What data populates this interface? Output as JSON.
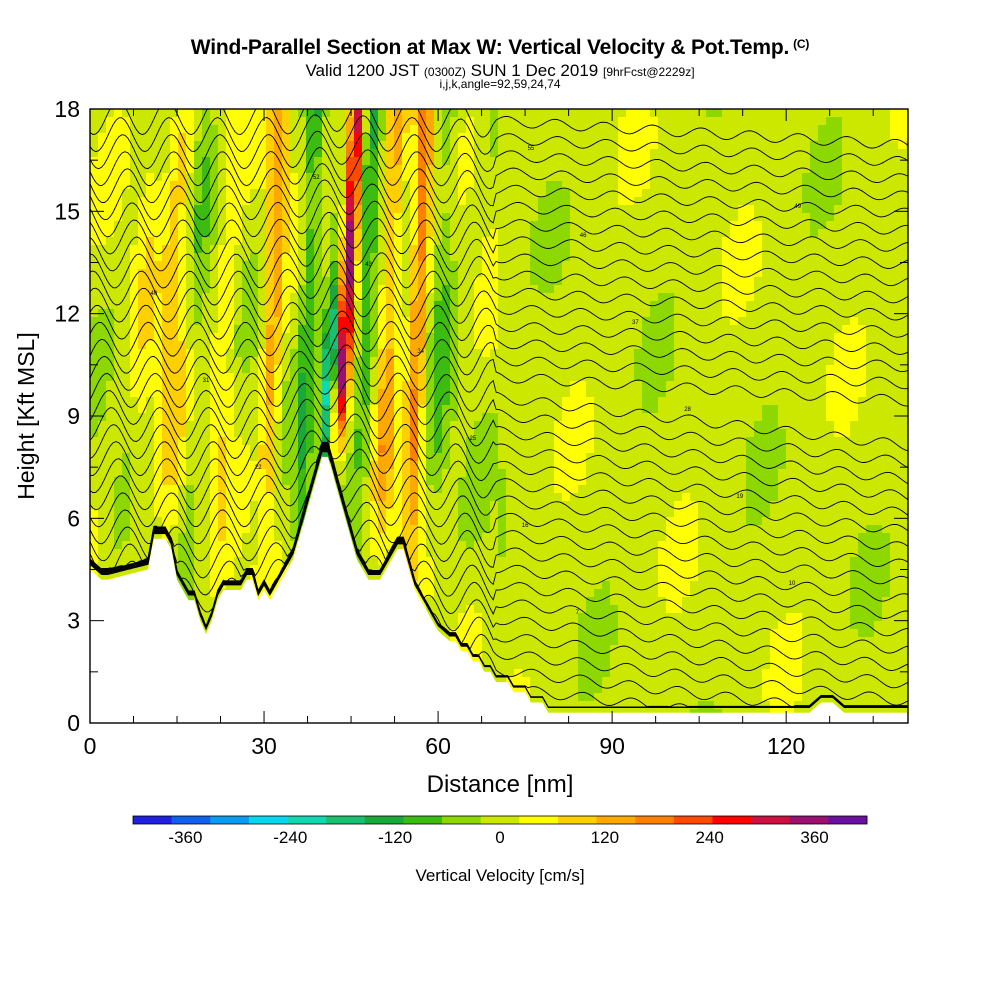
{
  "title": {
    "main": "Wind-Parallel Section at Max W: Vertical Velocity & Pot.Temp.",
    "mark": "(C)",
    "valid_prefix": "Valid 1200 JST",
    "utc": "(0300Z)",
    "valid_date": "SUN 1 Dec 2019",
    "forecast": "[9hrFcst@2229z]",
    "indices": "i,j,k,angle=92,59,24,74"
  },
  "chart_data": {
    "type": "heatmap",
    "xlabel": "Distance [nm]",
    "ylabel": "Height [Kft MSL]",
    "xlim": [
      0,
      141
    ],
    "ylim": [
      0,
      18
    ],
    "xticks": [
      0,
      30,
      60,
      90,
      120
    ],
    "yticks": [
      0,
      3,
      6,
      9,
      12,
      15,
      18
    ],
    "colorbar": {
      "label": "Vertical Velocity [cm/s]",
      "ticks": [
        -360,
        -240,
        -120,
        0,
        120,
        240,
        360
      ],
      "range": [
        -420,
        420
      ],
      "colors": [
        "#1f1fe0",
        "#1060ee",
        "#0a9cf0",
        "#08d8ee",
        "#10d8b0",
        "#18c070",
        "#1aa83a",
        "#3cbc10",
        "#8cd800",
        "#cce800",
        "#ffff00",
        "#ffd000",
        "#ffa800",
        "#ff8000",
        "#ff4800",
        "#ff0000",
        "#cc1040",
        "#9a1070",
        "#6a10a0"
      ]
    },
    "updraft_core": {
      "x": 43,
      "w_max": 360
    },
    "downdraft_core": {
      "x": 41,
      "w_min": -300
    },
    "terrain": {
      "x": [
        0,
        2,
        3,
        10,
        11,
        13,
        14,
        15,
        17,
        18,
        19,
        20,
        21,
        22,
        23,
        24,
        25,
        26,
        27,
        28,
        29,
        30,
        31,
        32,
        33,
        34,
        35,
        36,
        37,
        38,
        39,
        40,
        41,
        42,
        43,
        44,
        45,
        46,
        47,
        48,
        49,
        50,
        51,
        52,
        53,
        54,
        55,
        56,
        57,
        58,
        59,
        60,
        62,
        63,
        64,
        65,
        66,
        67,
        68,
        69,
        70,
        71,
        72,
        73,
        74,
        75,
        76,
        77,
        78,
        79,
        80,
        81,
        82,
        85,
        88,
        92,
        96,
        100,
        104,
        108,
        112,
        116,
        120,
        124,
        126,
        128,
        130,
        134,
        138,
        141
      ],
      "y": [
        4.5,
        4.2,
        4.2,
        4.5,
        5.4,
        5.4,
        5.1,
        4.2,
        3.6,
        3.6,
        3.0,
        2.6,
        3.0,
        3.6,
        3.9,
        3.9,
        3.9,
        3.9,
        4.2,
        4.2,
        3.6,
        3.9,
        3.6,
        3.9,
        4.2,
        4.5,
        4.8,
        5.4,
        6.0,
        6.6,
        7.2,
        7.8,
        7.8,
        7.2,
        6.6,
        6.0,
        5.4,
        4.8,
        4.5,
        4.2,
        4.2,
        4.2,
        4.5,
        4.8,
        5.1,
        5.1,
        4.5,
        3.9,
        3.6,
        3.3,
        3.0,
        2.7,
        2.4,
        2.4,
        2.1,
        2.1,
        1.8,
        1.8,
        1.5,
        1.5,
        1.2,
        1.2,
        1.2,
        0.9,
        0.9,
        0.9,
        0.6,
        0.6,
        0.6,
        0.3,
        0.3,
        0.3,
        0.3,
        0.3,
        0.3,
        0.3,
        0.3,
        0.3,
        0.3,
        0.3,
        0.3,
        0.3,
        0.3,
        0.3,
        0.6,
        0.6,
        0.3,
        0.3,
        0.3,
        0.3
      ]
    },
    "isentrope_labels": [
      "1",
      "4",
      "7",
      "10",
      "13",
      "16",
      "19",
      "22",
      "25",
      "28",
      "31",
      "34",
      "37",
      "40",
      "43",
      "46",
      "49",
      "52",
      "55"
    ]
  },
  "colors": {
    "background": "#ffffff",
    "axis": "#000000",
    "contour": "#000000",
    "terrain": "#ffffff"
  }
}
